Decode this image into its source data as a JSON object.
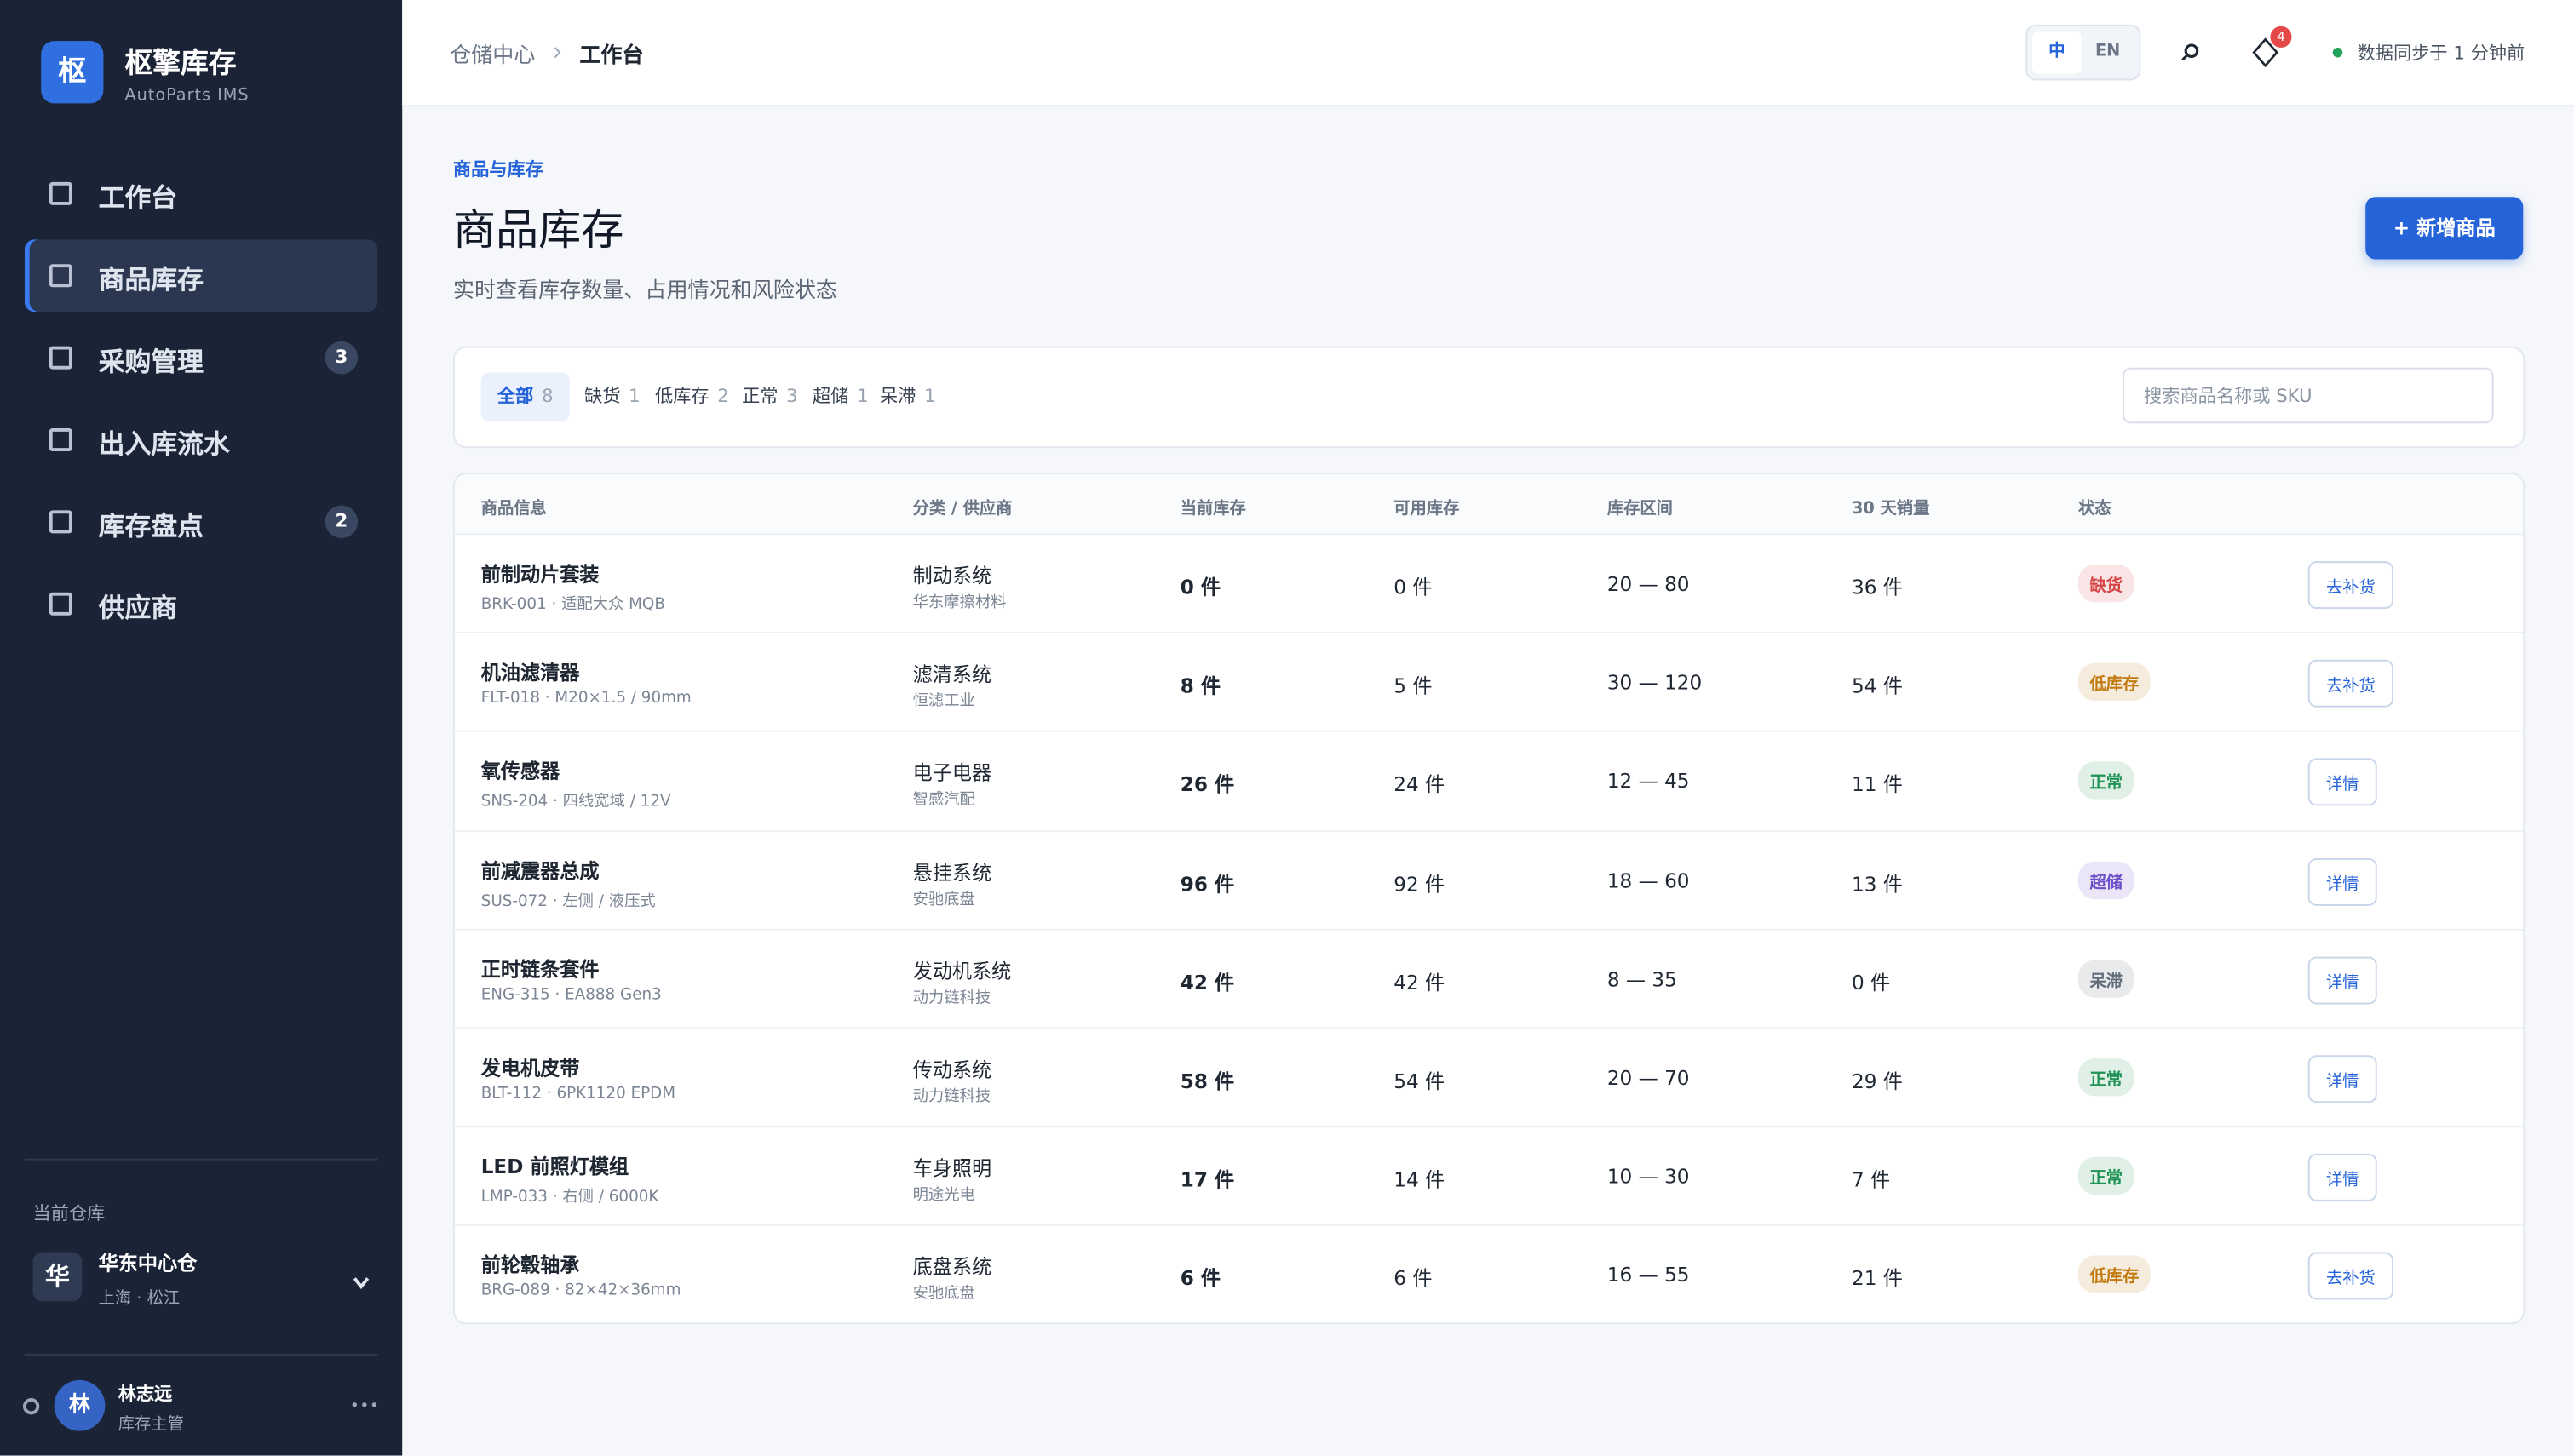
{
  "brand": {
    "logo": "枢",
    "name": "枢擎库存",
    "sub": "AutoParts IMS"
  },
  "nav": [
    {
      "label": "工作台"
    },
    {
      "label": "商品库存",
      "active": true
    },
    {
      "label": "采购管理",
      "badge": 3
    },
    {
      "label": "出入库流水"
    },
    {
      "label": "库存盘点",
      "badge": 2
    },
    {
      "label": "供应商"
    }
  ],
  "warehouse": {
    "label": "当前仓库",
    "icon": "华",
    "name": "华东中心仓",
    "location": "上海 · 松江"
  },
  "user": {
    "avatar": "林",
    "name": "林志远",
    "role": "库存主管"
  },
  "header": {
    "breadcrumb": [
      "仓储中心",
      "工作台"
    ],
    "languages": [
      "中",
      "EN"
    ],
    "notifications": 4,
    "sync": "数据同步于 1 分钟前"
  },
  "page": {
    "eyebrow": "商品与库存",
    "title": "商品库存",
    "subtitle": "实时查看库存数量、占用情况和风险状态",
    "button": "+ 新增商品"
  },
  "filters": [
    {
      "label": "全部",
      "count": 8,
      "active": true
    },
    {
      "label": "缺货",
      "count": 1
    },
    {
      "label": "低库存",
      "count": 2
    },
    {
      "label": "正常",
      "count": 3
    },
    {
      "label": "超储",
      "count": 1
    },
    {
      "label": "呆滞",
      "count": 1
    }
  ],
  "search_placeholder": "搜索商品名称或 SKU",
  "table": {
    "headers": [
      "商品信息",
      "分类 / 供应商",
      "当前库存",
      "可用库存",
      "库存区间",
      "30 天销量",
      "状态"
    ],
    "rows": [
      {
        "name": "前制动片套装",
        "sku": "BRK-001 · 适配大众 MQB",
        "category": "制动系统",
        "supplier": "华东摩擦材料",
        "stock": "0 件",
        "available": "0 件",
        "range": "20 — 80",
        "sales": "36 件",
        "status": "缺货",
        "status_color": "#d64545",
        "action": "去补货"
      },
      {
        "name": "机油滤清器",
        "sku": "FLT-018 · M20×1.5 / 90mm",
        "category": "滤清系统",
        "supplier": "恒滤工业",
        "stock": "8 件",
        "available": "5 件",
        "range": "30 — 120",
        "sales": "54 件",
        "status": "低库存",
        "status_color": "#c27a0e",
        "action": "去补货"
      },
      {
        "name": "氧传感器",
        "sku": "SNS-204 · 四线宽域 / 12V",
        "category": "电子电器",
        "supplier": "智感汽配",
        "stock": "26 件",
        "available": "24 件",
        "range": "12 — 45",
        "sales": "11 件",
        "status": "正常",
        "status_color": "#1f9254",
        "action": "详情"
      },
      {
        "name": "前减震器总成",
        "sku": "SUS-072 · 左侧 / 液压式",
        "category": "悬挂系统",
        "supplier": "安驰底盘",
        "stock": "96 件",
        "available": "92 件",
        "range": "18 — 60",
        "sales": "13 件",
        "status": "超储",
        "status_color": "#6d4fc7",
        "action": "详情"
      },
      {
        "name": "正时链条套件",
        "sku": "ENG-315 · EA888 Gen3",
        "category": "发动机系统",
        "supplier": "动力链科技",
        "stock": "42 件",
        "available": "42 件",
        "range": "8 — 35",
        "sales": "0 件",
        "status": "呆滞",
        "status_color": "#5f6b7a",
        "action": "详情"
      },
      {
        "name": "发电机皮带",
        "sku": "BLT-112 · 6PK1120 EPDM",
        "category": "传动系统",
        "supplier": "动力链科技",
        "stock": "58 件",
        "available": "54 件",
        "range": "20 — 70",
        "sales": "29 件",
        "status": "正常",
        "status_color": "#1f9254",
        "action": "详情"
      },
      {
        "name": "LED 前照灯模组",
        "sku": "LMP-033 · 右侧 / 6000K",
        "category": "车身照明",
        "supplier": "明途光电",
        "stock": "17 件",
        "available": "14 件",
        "range": "10 — 30",
        "sales": "7 件",
        "status": "正常",
        "status_color": "#1f9254",
        "action": "详情"
      },
      {
        "name": "前轮毂轴承",
        "sku": "BRG-089 · 82×42×36mm",
        "category": "底盘系统",
        "supplier": "安驰底盘",
        "stock": "6 件",
        "available": "6 件",
        "range": "16 — 55",
        "sales": "21 件",
        "status": "低库存",
        "status_color": "#c27a0e",
        "action": "去补货"
      }
    ]
  }
}
